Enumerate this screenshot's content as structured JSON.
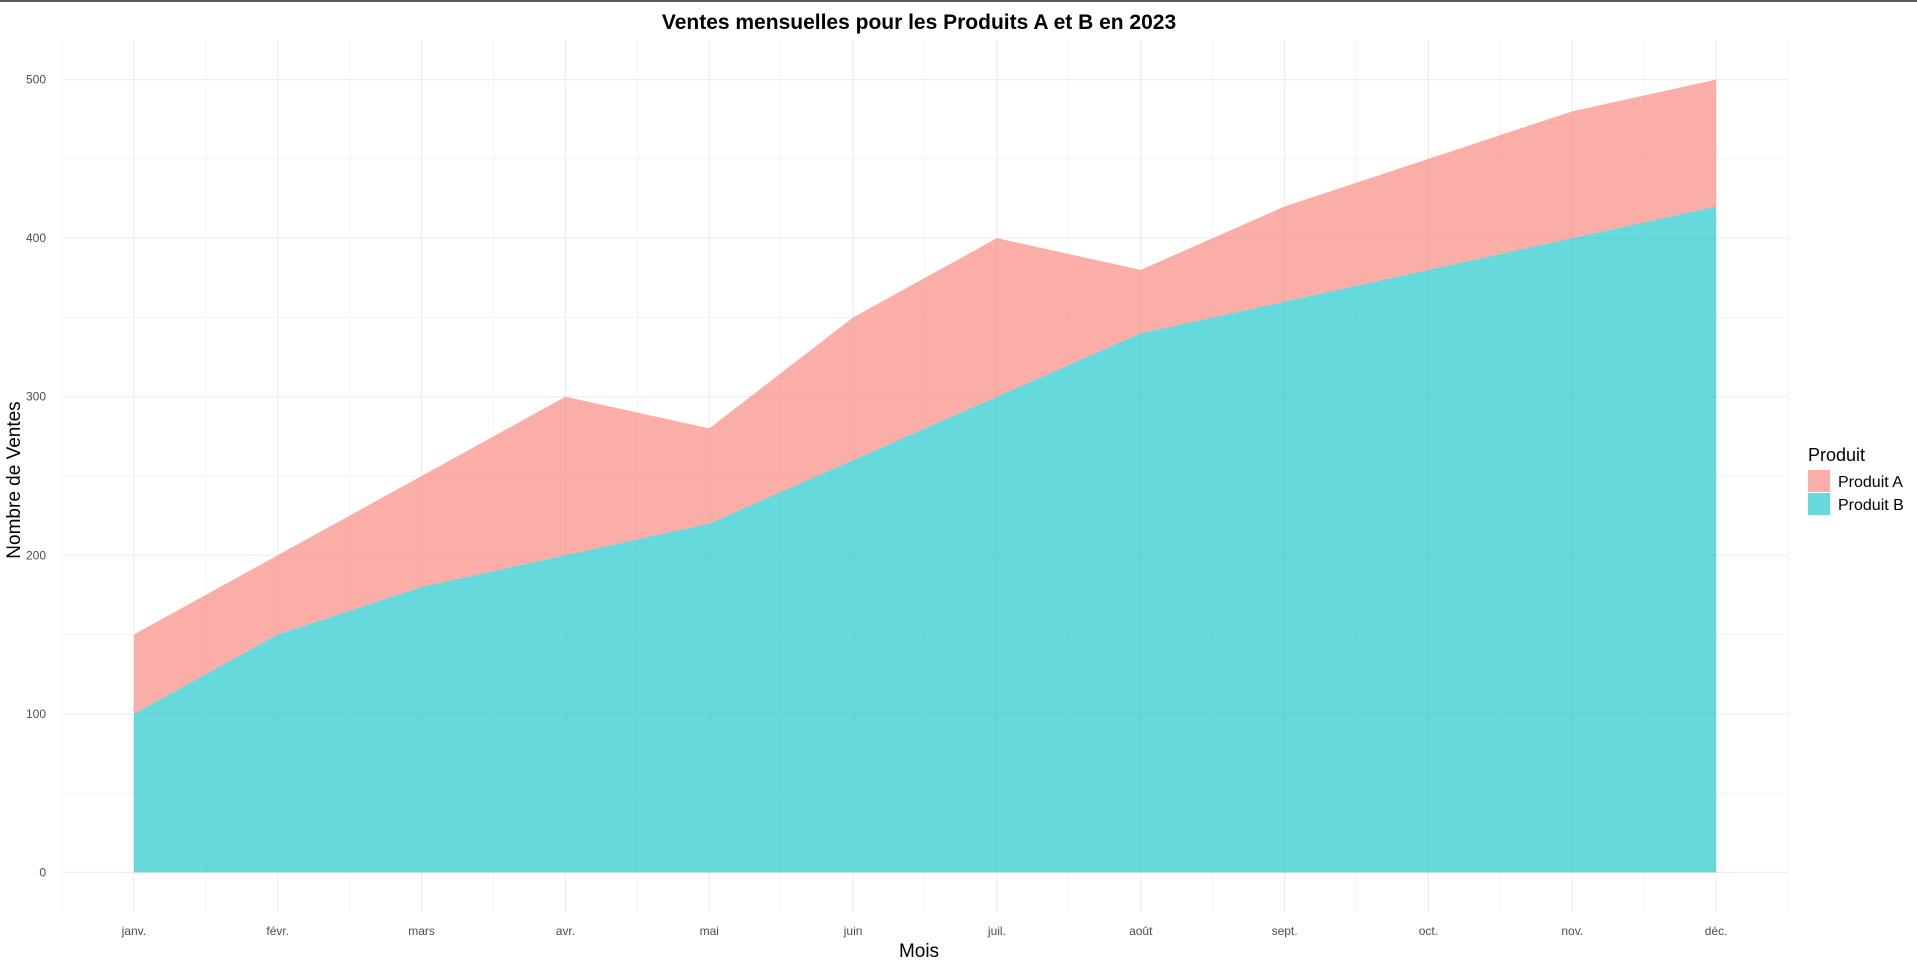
{
  "chart_data": {
    "type": "area",
    "stacked": true,
    "title": "Ventes mensuelles pour les Produits A et B en 2023",
    "xlabel": "Mois",
    "ylabel": "Nombre de Ventes",
    "categories": [
      "janv.",
      "févr.",
      "mars",
      "avr.",
      "mai",
      "juin",
      "juil.",
      "août",
      "sept.",
      "oct.",
      "nov.",
      "déc."
    ],
    "series": [
      {
        "name": "Produit A",
        "color": "#F8766D",
        "values": [
          50,
          50,
          70,
          100,
          60,
          90,
          100,
          40,
          60,
          70,
          80,
          80
        ]
      },
      {
        "name": "Produit B",
        "color": "#00BFC4",
        "values": [
          100,
          150,
          180,
          200,
          220,
          260,
          300,
          340,
          360,
          380,
          400,
          420
        ]
      }
    ],
    "stack_order": [
      "Produit B",
      "Produit A"
    ],
    "yticks": [
      0,
      100,
      200,
      300,
      400,
      500
    ],
    "ylim": [
      -25,
      525
    ],
    "opacity": 0.6,
    "grid": true,
    "legend": {
      "title": "Produit",
      "position": "right"
    }
  }
}
